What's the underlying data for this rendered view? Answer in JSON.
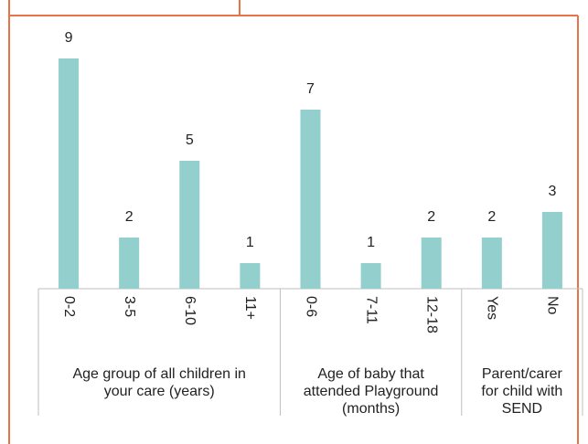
{
  "chart_data": {
    "type": "bar",
    "color": "#93cfcc",
    "groups": [
      {
        "label": "Age group of all children in your care (years)",
        "categories": [
          "0-2",
          "3-5",
          "6-10",
          "11+"
        ],
        "values": [
          9,
          2,
          5,
          1
        ]
      },
      {
        "label": "Age of baby that attended Playground (months)",
        "categories": [
          "0-6",
          "7-11",
          "12-18"
        ],
        "values": [
          7,
          1,
          2
        ]
      },
      {
        "label": "Parent/carer for child with SEND",
        "categories": [
          "Yes",
          "No"
        ],
        "values": [
          2,
          3
        ]
      }
    ]
  }
}
